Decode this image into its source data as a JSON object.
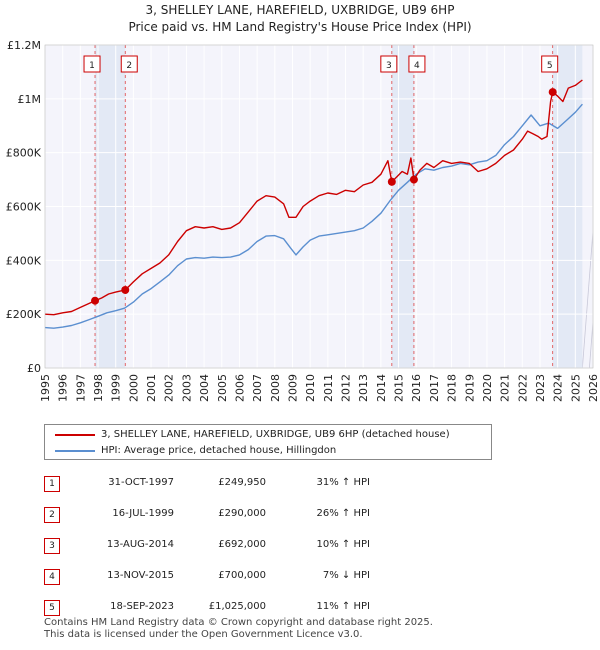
{
  "chart_data": {
    "type": "line",
    "title": "3, SHELLEY LANE, HAREFIELD, UXBRIDGE, UB9 6HP",
    "subtitle": "Price paid vs. HM Land Registry's House Price Index (HPI)",
    "xlim": [
      1995,
      2026
    ],
    "ylim": [
      0,
      1200000
    ],
    "x_ticks": [
      1995,
      1996,
      1997,
      1998,
      1999,
      2000,
      2001,
      2002,
      2003,
      2004,
      2005,
      2006,
      2007,
      2008,
      2009,
      2010,
      2011,
      2012,
      2013,
      2014,
      2015,
      2016,
      2017,
      2018,
      2019,
      2020,
      2021,
      2022,
      2023,
      2024,
      2025,
      2026
    ],
    "y_ticks": [
      {
        "value": 0,
        "label": "£0"
      },
      {
        "value": 200000,
        "label": "£200K"
      },
      {
        "value": 400000,
        "label": "£400K"
      },
      {
        "value": 600000,
        "label": "£600K"
      },
      {
        "value": 800000,
        "label": "£800K"
      },
      {
        "value": 1000000,
        "label": "£1M"
      },
      {
        "value": 1200000,
        "label": "£1.2M"
      }
    ],
    "series": [
      {
        "name": "3, SHELLEY LANE, HAREFIELD, UXBRIDGE, UB9 6HP (detached house)",
        "color": "#cc0000",
        "x": [
          1995.0,
          1995.5,
          1996.0,
          1996.5,
          1997.0,
          1997.5,
          1997.83,
          1998.2,
          1998.6,
          1999.0,
          1999.54,
          2000.0,
          2000.5,
          2001.0,
          2001.5,
          2002.0,
          2002.5,
          2003.0,
          2003.5,
          2004.0,
          2004.5,
          2005.0,
          2005.5,
          2006.0,
          2006.5,
          2007.0,
          2007.5,
          2008.0,
          2008.5,
          2008.8,
          2009.2,
          2009.6,
          2010.0,
          2010.5,
          2011.0,
          2011.5,
          2012.0,
          2012.5,
          2013.0,
          2013.5,
          2014.0,
          2014.4,
          2014.62,
          2014.9,
          2015.2,
          2015.5,
          2015.7,
          2015.87,
          2016.2,
          2016.6,
          2017.0,
          2017.5,
          2018.0,
          2018.5,
          2019.0,
          2019.5,
          2020.0,
          2020.5,
          2021.0,
          2021.5,
          2022.0,
          2022.3,
          2022.6,
          2022.9,
          2023.1,
          2023.4,
          2023.6,
          2023.72,
          2024.0,
          2024.3,
          2024.6,
          2025.0,
          2025.4
        ],
        "y": [
          200000,
          198000,
          205000,
          210000,
          225000,
          240000,
          249950,
          260000,
          275000,
          282000,
          290000,
          320000,
          350000,
          370000,
          390000,
          420000,
          470000,
          510000,
          525000,
          520000,
          525000,
          515000,
          520000,
          540000,
          580000,
          620000,
          640000,
          635000,
          610000,
          560000,
          560000,
          600000,
          620000,
          640000,
          650000,
          645000,
          660000,
          655000,
          680000,
          690000,
          720000,
          770000,
          692000,
          710000,
          730000,
          720000,
          780000,
          700000,
          735000,
          760000,
          745000,
          770000,
          760000,
          765000,
          760000,
          730000,
          740000,
          760000,
          790000,
          810000,
          850000,
          880000,
          870000,
          860000,
          850000,
          860000,
          990000,
          1025000,
          1010000,
          990000,
          1040000,
          1050000,
          1070000
        ]
      },
      {
        "name": "HPI: Average price, detached house, Hillingdon",
        "color": "#5b8fd0",
        "x": [
          1995.0,
          1995.5,
          1996.0,
          1996.5,
          1997.0,
          1997.5,
          1998.0,
          1998.5,
          1999.0,
          1999.5,
          2000.0,
          2000.5,
          2001.0,
          2001.5,
          2002.0,
          2002.5,
          2003.0,
          2003.5,
          2004.0,
          2004.5,
          2005.0,
          2005.5,
          2006.0,
          2006.5,
          2007.0,
          2007.5,
          2008.0,
          2008.5,
          2008.9,
          2009.2,
          2009.6,
          2010.0,
          2010.5,
          2011.0,
          2011.5,
          2012.0,
          2012.5,
          2013.0,
          2013.5,
          2014.0,
          2014.5,
          2015.0,
          2015.5,
          2016.0,
          2016.5,
          2017.0,
          2017.5,
          2018.0,
          2018.5,
          2019.0,
          2019.5,
          2020.0,
          2020.5,
          2021.0,
          2021.5,
          2022.0,
          2022.5,
          2023.0,
          2023.5,
          2024.0,
          2024.5,
          2025.0,
          2025.4
        ],
        "y": [
          150000,
          148000,
          152000,
          158000,
          168000,
          180000,
          192000,
          205000,
          213000,
          222000,
          245000,
          275000,
          295000,
          320000,
          345000,
          380000,
          405000,
          410000,
          408000,
          412000,
          410000,
          412000,
          420000,
          440000,
          470000,
          490000,
          492000,
          480000,
          445000,
          420000,
          450000,
          475000,
          490000,
          495000,
          500000,
          505000,
          510000,
          520000,
          545000,
          575000,
          620000,
          660000,
          690000,
          720000,
          740000,
          735000,
          745000,
          750000,
          760000,
          755000,
          765000,
          770000,
          790000,
          830000,
          860000,
          900000,
          940000,
          900000,
          910000,
          890000,
          920000,
          950000,
          980000
        ]
      }
    ],
    "sales": [
      {
        "num": "1",
        "x": 1997.83,
        "y": 249950,
        "date": "31-OCT-1997",
        "price": "£249,950",
        "hpi": "31% ↑ HPI"
      },
      {
        "num": "2",
        "x": 1999.54,
        "y": 290000,
        "date": "16-JUL-1999",
        "price": "£290,000",
        "hpi": "26% ↑ HPI"
      },
      {
        "num": "3",
        "x": 2014.62,
        "y": 692000,
        "date": "13-AUG-2014",
        "price": "£692,000",
        "hpi": "10% ↑ HPI"
      },
      {
        "num": "4",
        "x": 2015.87,
        "y": 700000,
        "date": "13-NOV-2015",
        "price": "£700,000",
        "hpi": "7% ↓ HPI"
      },
      {
        "num": "5",
        "x": 2023.72,
        "y": 1025000,
        "date": "18-SEP-2023",
        "price": "£1,025,000",
        "hpi": "11% ↑ HPI"
      }
    ],
    "shaded_periods": [
      [
        1997.83,
        1999.54
      ],
      [
        2014.62,
        2015.87
      ],
      [
        2023.72,
        2025.4
      ]
    ],
    "projection_from": 2025.4
  },
  "legend": {
    "property_label": "3, SHELLEY LANE, HAREFIELD, UXBRIDGE, UB9 6HP (detached house)",
    "hpi_label": "HPI: Average price, detached house, Hillingdon",
    "property_color": "#cc0000",
    "hpi_color": "#5b8fd0"
  },
  "footer": {
    "line1": "Contains HM Land Registry data © Crown copyright and database right 2025.",
    "line2": "This data is licensed under the Open Government Licence v3.0."
  }
}
